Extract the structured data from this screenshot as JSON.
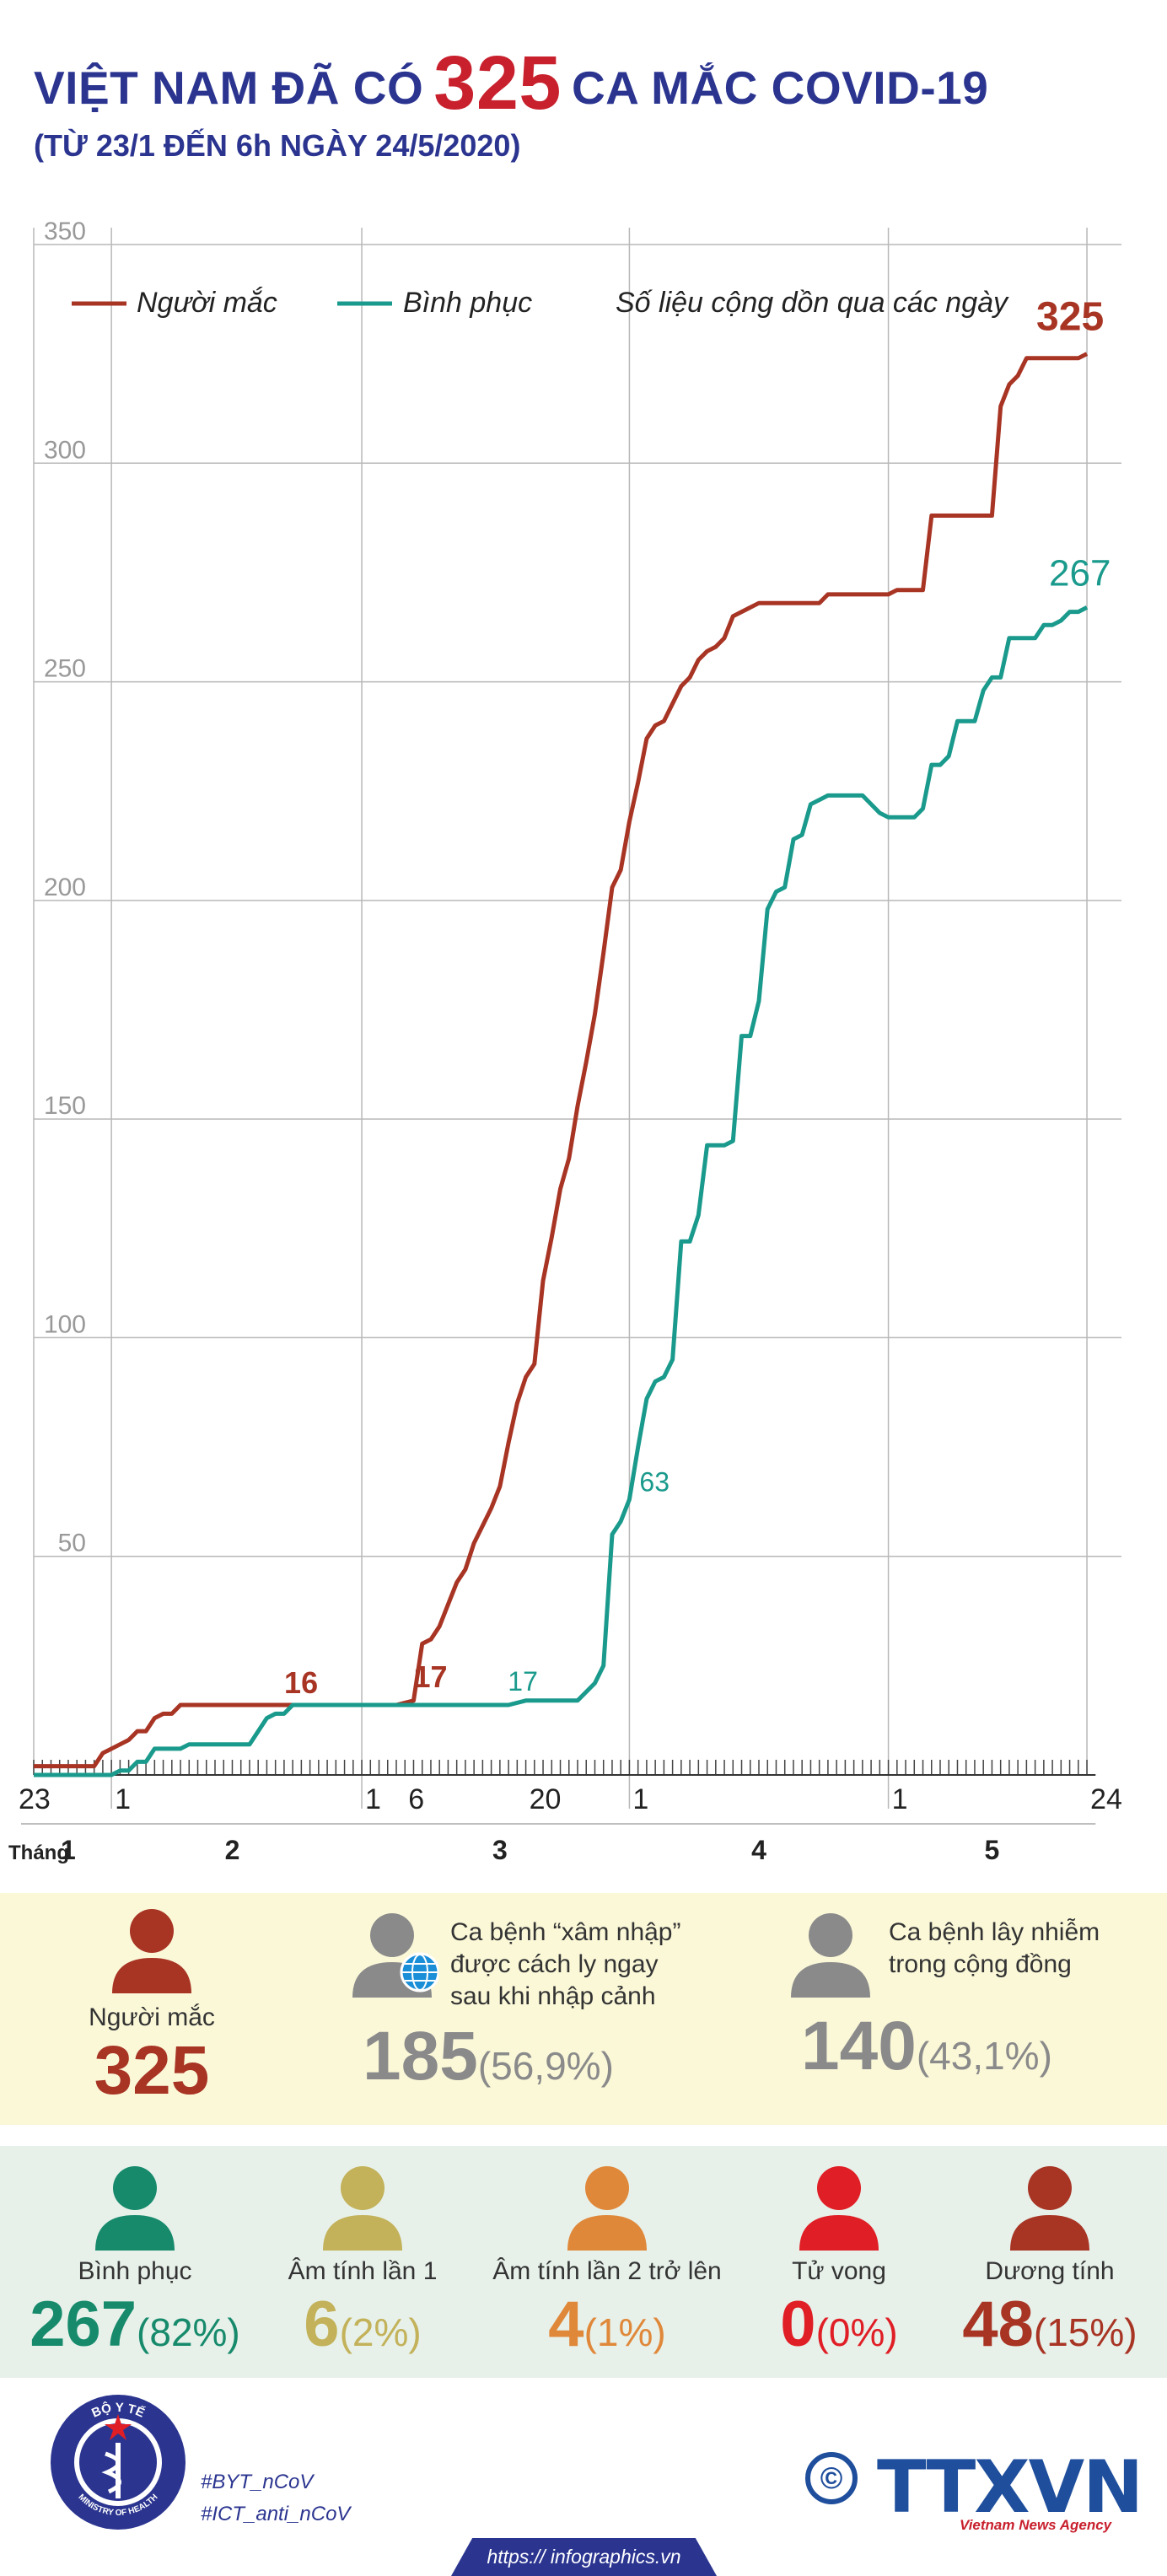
{
  "header": {
    "title_prefix": "VIỆT NAM ĐÃ CÓ",
    "title_number": "325",
    "title_suffix": "CA MẮC COVID-19",
    "subtitle": "(TỪ 23/1 ĐẾN 6h NGÀY 24/5/2020)"
  },
  "colors": {
    "infected": "#a83424",
    "recovered": "#1a9a8c",
    "title": "#2b3590",
    "accent": "#c8202d"
  },
  "chart_data": {
    "type": "line",
    "ylim": [
      0,
      350
    ],
    "yticks": [
      50,
      100,
      150,
      200,
      250,
      300,
      350
    ],
    "legend": {
      "infected": "Người mắc",
      "recovered": "Bình phục",
      "note": "Số liệu cộng dồn qua các ngày"
    },
    "x_axis": {
      "month_label": "Tháng",
      "day_ticks": [
        {
          "label": "23",
          "day": 0
        },
        {
          "label": "1",
          "day": 9
        },
        {
          "label": "1",
          "day": 38
        },
        {
          "label": "6",
          "day": 43
        },
        {
          "label": "20",
          "day": 57
        },
        {
          "label": "1",
          "day": 69
        },
        {
          "label": "1",
          "day": 99
        },
        {
          "label": "24",
          "day": 122
        }
      ],
      "months": [
        {
          "label": "1",
          "center_day": 4
        },
        {
          "label": "2",
          "center_day": 23
        },
        {
          "label": "3",
          "center_day": 54
        },
        {
          "label": "4",
          "center_day": 84
        },
        {
          "label": "5",
          "center_day": 111
        }
      ],
      "month_boundaries": [
        9,
        38,
        69,
        99
      ]
    },
    "series": [
      {
        "name": "Người mắc",
        "key": "infected",
        "points": [
          [
            0,
            2
          ],
          [
            7,
            2
          ],
          [
            8,
            5
          ],
          [
            10,
            7
          ],
          [
            11,
            8
          ],
          [
            12,
            10
          ],
          [
            13,
            10
          ],
          [
            14,
            13
          ],
          [
            15,
            14
          ],
          [
            16,
            14
          ],
          [
            17,
            16
          ],
          [
            18,
            16
          ],
          [
            20,
            16
          ],
          [
            21,
            16
          ],
          [
            38,
            16
          ],
          [
            42,
            16
          ],
          [
            44,
            17
          ],
          [
            45,
            30
          ],
          [
            46,
            31
          ],
          [
            47,
            34
          ],
          [
            48,
            39
          ],
          [
            49,
            44
          ],
          [
            50,
            47
          ],
          [
            51,
            53
          ],
          [
            52,
            57
          ],
          [
            53,
            61
          ],
          [
            54,
            66
          ],
          [
            55,
            76
          ],
          [
            56,
            85
          ],
          [
            57,
            91
          ],
          [
            58,
            94
          ],
          [
            59,
            113
          ],
          [
            60,
            123
          ],
          [
            61,
            134
          ],
          [
            62,
            141
          ],
          [
            63,
            153
          ],
          [
            64,
            163
          ],
          [
            65,
            174
          ],
          [
            66,
            188
          ],
          [
            67,
            203
          ],
          [
            68,
            207
          ],
          [
            69,
            218
          ],
          [
            70,
            227
          ],
          [
            71,
            237
          ],
          [
            72,
            240
          ],
          [
            73,
            241
          ],
          [
            74,
            245
          ],
          [
            75,
            249
          ],
          [
            76,
            251
          ],
          [
            77,
            255
          ],
          [
            78,
            257
          ],
          [
            79,
            258
          ],
          [
            80,
            260
          ],
          [
            81,
            265
          ],
          [
            82,
            266
          ],
          [
            83,
            267
          ],
          [
            84,
            268
          ],
          [
            86,
            268
          ],
          [
            91,
            268
          ],
          [
            92,
            270
          ],
          [
            95,
            270
          ],
          [
            99,
            270
          ],
          [
            100,
            271
          ],
          [
            101,
            271
          ],
          [
            102,
            271
          ],
          [
            103,
            271
          ],
          [
            104,
            288
          ],
          [
            105,
            288
          ],
          [
            110,
            288
          ],
          [
            111,
            288
          ],
          [
            112,
            313
          ],
          [
            113,
            318
          ],
          [
            114,
            320
          ],
          [
            115,
            324
          ],
          [
            117,
            324
          ],
          [
            120,
            324
          ],
          [
            121,
            324
          ],
          [
            122,
            325
          ]
        ]
      },
      {
        "name": "Bình phục",
        "key": "recovered",
        "points": [
          [
            0,
            0
          ],
          [
            9,
            0
          ],
          [
            10,
            1
          ],
          [
            11,
            1
          ],
          [
            12,
            3
          ],
          [
            13,
            3
          ],
          [
            14,
            6
          ],
          [
            15,
            6
          ],
          [
            16,
            6
          ],
          [
            17,
            6
          ],
          [
            18,
            7
          ],
          [
            19,
            7
          ],
          [
            20,
            7
          ],
          [
            21,
            7
          ],
          [
            22,
            7
          ],
          [
            25,
            7
          ],
          [
            27,
            13
          ],
          [
            28,
            14
          ],
          [
            29,
            14
          ],
          [
            30,
            16
          ],
          [
            31,
            16
          ],
          [
            32,
            16
          ],
          [
            55,
            16
          ],
          [
            57,
            17
          ],
          [
            60,
            17
          ],
          [
            63,
            17
          ],
          [
            64,
            19
          ],
          [
            65,
            21
          ],
          [
            66,
            25
          ],
          [
            67,
            55
          ],
          [
            68,
            58
          ],
          [
            69,
            63
          ],
          [
            70,
            75
          ],
          [
            71,
            86
          ],
          [
            72,
            90
          ],
          [
            73,
            91
          ],
          [
            74,
            95
          ],
          [
            75,
            122
          ],
          [
            76,
            122
          ],
          [
            77,
            128
          ],
          [
            78,
            144
          ],
          [
            79,
            144
          ],
          [
            80,
            144
          ],
          [
            81,
            145
          ],
          [
            82,
            169
          ],
          [
            83,
            169
          ],
          [
            84,
            177
          ],
          [
            85,
            198
          ],
          [
            86,
            202
          ],
          [
            87,
            203
          ],
          [
            88,
            214
          ],
          [
            89,
            215
          ],
          [
            90,
            222
          ],
          [
            91,
            223
          ],
          [
            92,
            224
          ],
          [
            93,
            224
          ],
          [
            94,
            224
          ],
          [
            95,
            224
          ],
          [
            96,
            224
          ],
          [
            97,
            222
          ],
          [
            98,
            220
          ],
          [
            99,
            219
          ],
          [
            100,
            219
          ],
          [
            101,
            219
          ],
          [
            102,
            219
          ],
          [
            103,
            221
          ],
          [
            104,
            231
          ],
          [
            105,
            231
          ],
          [
            106,
            233
          ],
          [
            107,
            241
          ],
          [
            108,
            241
          ],
          [
            109,
            241
          ],
          [
            110,
            248
          ],
          [
            111,
            251
          ],
          [
            112,
            251
          ],
          [
            113,
            260
          ],
          [
            114,
            260
          ],
          [
            115,
            260
          ],
          [
            116,
            260
          ],
          [
            117,
            263
          ],
          [
            118,
            263
          ],
          [
            119,
            264
          ],
          [
            120,
            266
          ],
          [
            121,
            266
          ],
          [
            122,
            267
          ]
        ]
      }
    ],
    "annotations": [
      {
        "text": "325",
        "series": "infected",
        "day": 122,
        "value": 325
      },
      {
        "text": "267",
        "series": "recovered",
        "day": 122,
        "value": 267
      },
      {
        "text": "16",
        "series": "infected",
        "day": 38,
        "value": 16
      },
      {
        "text": "17",
        "series": "infected",
        "day": 44,
        "value": 17
      },
      {
        "text": "17",
        "series": "recovered",
        "day": 60,
        "value": 17
      },
      {
        "text": "63",
        "series": "recovered",
        "day": 69,
        "value": 63
      }
    ]
  },
  "stats_top": [
    {
      "label": "Người mắc",
      "value": "325",
      "pct": "",
      "color": "#a83424",
      "icon": "person-icon"
    },
    {
      "label": "Ca bệnh “xâm nhập” được cách ly ngay sau khi nhập cảnh",
      "value": "185",
      "pct": "(56,9%)",
      "color": "#8a8a8a",
      "icon": "person-globe-icon"
    },
    {
      "label": "Ca bệnh lây nhiễm trong cộng đồng",
      "value": "140",
      "pct": "(43,1%)",
      "color": "#8a8a8a",
      "icon": "person-icon"
    }
  ],
  "stats_bottom": [
    {
      "label": "Bình phục",
      "value": "267",
      "pct": "(82%)",
      "color": "#178a6c",
      "icon": "person-icon"
    },
    {
      "label": "Âm tính lần 1",
      "value": "6",
      "pct": "(2%)",
      "color": "#c3b25a",
      "icon": "person-icon"
    },
    {
      "label": "Âm tính lần 2 trở lên",
      "value": "4",
      "pct": "(1%)",
      "color": "#e0883a",
      "icon": "person-icon"
    },
    {
      "label": "Tử vong",
      "value": "0",
      "pct": "(0%)",
      "color": "#e01e25",
      "icon": "person-icon"
    },
    {
      "label": "Dương tính",
      "value": "48",
      "pct": "(15%)",
      "color": "#a83424",
      "icon": "person-icon"
    }
  ],
  "footer": {
    "logo_top": "BỘ Y TẾ",
    "logo_bottom": "MINISTRY OF HEALTH",
    "tag1": "#BYT_nCoV",
    "tag2": "#ICT_anti_nCoV",
    "brand": "TTXVN",
    "brand_sub": "Vietnam News Agency",
    "copyright": "©",
    "url": "https:// infographics.vn"
  }
}
